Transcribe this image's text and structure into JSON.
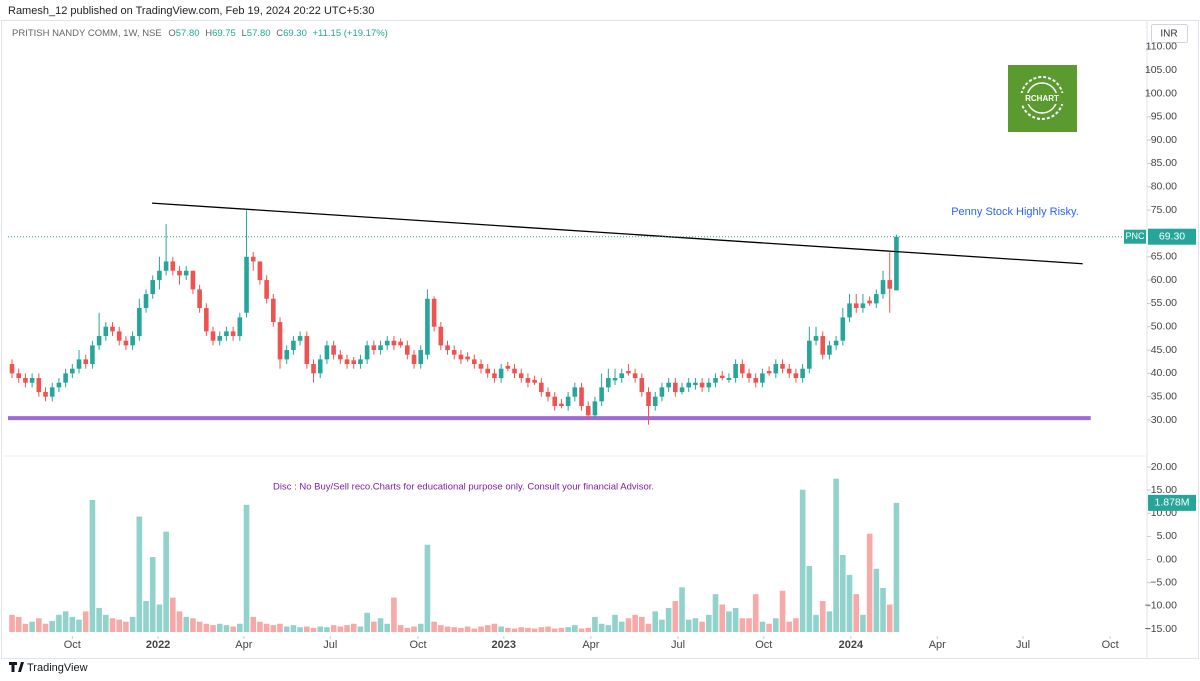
{
  "chart_data": {
    "type": "candlestick",
    "title": "Ramesh_12 published on TradingView.com, Feb 19, 2024 20:22 UTC+5:30",
    "legend": {
      "symbol": "PRITISH NANDY COMM, 1W, NSE",
      "labels": [
        "O",
        "H",
        "L",
        "C"
      ],
      "values": [
        "57.80",
        "69.75",
        "57.80",
        "69.30"
      ],
      "change": "+11.15 (+19.17%)"
    },
    "currency": "INR",
    "logo": "RCHART",
    "brand": "TradingView",
    "annotations": [
      "Penny Stock Highly Risky.",
      "Disc  : No Buy/Sell reco.Charts for educational purpose only.  Consult your financial Advisor."
    ],
    "price_tag": {
      "symbol": "PNC",
      "label": "69.30"
    },
    "volume_tag": {
      "label": "1.878M"
    },
    "up_color": "#26a69a",
    "down_color": "#ef5350",
    "volume_up_color": "#92d2cc",
    "volume_down_color": "#f7a9a7",
    "open": [
      42,
      40,
      39,
      38,
      39,
      36,
      35,
      37,
      38,
      40,
      41,
      43,
      42,
      46,
      48,
      50,
      49,
      47,
      46,
      48,
      54,
      57,
      60,
      62,
      64,
      62,
      61,
      62,
      58,
      54,
      49,
      47,
      48,
      49,
      48,
      53,
      65,
      64,
      60,
      56,
      51,
      43,
      45,
      47,
      48,
      42,
      40,
      43,
      46,
      44,
      43,
      42.8,
      42,
      43,
      46,
      45,
      46,
      47,
      46.8,
      46,
      44,
      42,
      44,
      56,
      50,
      46,
      45,
      44,
      43.6,
      43,
      42,
      41,
      40,
      39,
      41.6,
      41,
      40,
      39,
      38.6,
      38,
      36,
      35,
      33.5,
      33,
      35,
      37,
      33,
      31,
      34,
      37,
      38.5,
      39,
      40.5,
      40,
      39,
      36,
      33,
      35,
      37,
      38,
      36,
      37,
      37.5,
      38,
      37,
      38,
      39.5,
      38.6,
      39,
      42,
      40,
      39,
      38,
      40.5,
      40,
      42,
      41,
      40,
      39,
      41,
      47,
      48,
      44,
      46,
      47,
      52,
      55,
      54,
      55.6,
      55,
      57,
      60,
      57.8
    ],
    "high": [
      43,
      41,
      40,
      40,
      40,
      37,
      38,
      39,
      41,
      42,
      45,
      44,
      47,
      53,
      51,
      51,
      50,
      48,
      49,
      56,
      58,
      61,
      65,
      72,
      65,
      63,
      63,
      62,
      59,
      55,
      50,
      49,
      50,
      50,
      53,
      75,
      66,
      64,
      61,
      57,
      52,
      46,
      48,
      49,
      49,
      43,
      44,
      47,
      47,
      45,
      44,
      43.5,
      44,
      47,
      47,
      47,
      48,
      48,
      47.5,
      47,
      45,
      46,
      58,
      56.5,
      51,
      47,
      46,
      45,
      44.5,
      44,
      43,
      42,
      41,
      42,
      42.5,
      42,
      41,
      40,
      39.5,
      39,
      37,
      36,
      34.5,
      36,
      38,
      38,
      34,
      35,
      40,
      41,
      41,
      41,
      42,
      41,
      40,
      37,
      36,
      38,
      39,
      39,
      38,
      39,
      39,
      39,
      39,
      40,
      40.5,
      40,
      43,
      43,
      41,
      40,
      41,
      41.5,
      43,
      43,
      42,
      41,
      42,
      50,
      50,
      49,
      47,
      48,
      54,
      57,
      57,
      57,
      56.5,
      58,
      62,
      66,
      69.75
    ],
    "low": [
      39,
      38,
      37,
      37,
      35,
      34,
      34,
      36,
      37,
      39,
      40,
      41,
      41,
      45,
      47,
      48,
      46,
      45,
      45,
      47,
      53,
      56,
      58,
      61,
      61,
      59,
      60,
      57,
      53,
      48,
      46,
      46,
      47,
      47,
      47,
      52,
      62,
      59,
      55,
      50,
      41,
      42,
      44,
      46,
      41,
      38,
      39,
      42,
      43,
      42,
      41,
      41,
      41,
      42,
      44,
      44,
      45,
      45,
      45.5,
      43,
      41,
      41,
      43,
      49,
      45,
      44,
      43,
      42,
      42.5,
      41,
      40,
      39,
      38,
      38,
      40.5,
      39,
      38,
      37,
      37.5,
      35,
      34,
      32,
      32.5,
      32,
      34,
      32,
      30,
      30.5,
      33,
      36,
      37.5,
      38,
      39.5,
      38,
      35,
      29,
      32,
      34,
      36,
      35,
      35.5,
      36,
      36.5,
      36,
      36,
      37,
      38.5,
      38,
      38,
      39,
      38,
      37,
      37,
      39.5,
      39,
      40,
      39,
      38,
      38,
      40,
      46,
      43,
      43,
      45,
      46,
      51,
      53,
      53,
      54.5,
      54,
      56,
      53,
      57.8
    ],
    "close": [
      40,
      39,
      38,
      39,
      36,
      35,
      37,
      38,
      40,
      41,
      43,
      42,
      46,
      48,
      50,
      49,
      47,
      46,
      48,
      54,
      57,
      60,
      62,
      64,
      62,
      61,
      62,
      58,
      54,
      49,
      47,
      48,
      49,
      48,
      52,
      65,
      64,
      60,
      56,
      51,
      43,
      45,
      47,
      48,
      42,
      40,
      43,
      46,
      44,
      43,
      42,
      42,
      43,
      46,
      45,
      46,
      47,
      46,
      46,
      44,
      42,
      45,
      56,
      50,
      46,
      45,
      44,
      43,
      43,
      42,
      41,
      40,
      39,
      41,
      41,
      40,
      39,
      38,
      38,
      36,
      35,
      33,
      33,
      35,
      37,
      33,
      31,
      34,
      37,
      39,
      39,
      40,
      40,
      39,
      36,
      33,
      35,
      37,
      38,
      36,
      37,
      38,
      38,
      37,
      38,
      39,
      39,
      39,
      42,
      40,
      39,
      38,
      40,
      40,
      42,
      41,
      40,
      39,
      41,
      47,
      48,
      44,
      46,
      47,
      52,
      55,
      54,
      55,
      55,
      57,
      60,
      58.15,
      69.3
    ],
    "volume": [
      0.25,
      0.22,
      0.12,
      0.15,
      0.2,
      0.12,
      0.16,
      0.25,
      0.3,
      0.22,
      0.18,
      0.3,
      1.92,
      0.35,
      0.25,
      0.2,
      0.18,
      0.15,
      0.22,
      1.68,
      0.45,
      1.09,
      0.4,
      1.46,
      0.5,
      0.3,
      0.22,
      0.2,
      0.15,
      0.12,
      0.1,
      0.12,
      0.1,
      0.08,
      0.12,
      1.85,
      0.22,
      0.15,
      0.12,
      0.1,
      0.12,
      0.08,
      0.1,
      0.07,
      0.08,
      0.06,
      0.08,
      0.07,
      0.1,
      0.08,
      0.1,
      0.12,
      0.08,
      0.28,
      0.15,
      0.2,
      0.12,
      0.5,
      0.1,
      0.06,
      0.08,
      0.12,
      1.27,
      0.15,
      0.1,
      0.08,
      0.07,
      0.06,
      0.08,
      0.05,
      0.08,
      0.1,
      0.12,
      0.08,
      0.06,
      0.05,
      0.07,
      0.06,
      0.05,
      0.07,
      0.08,
      0.05,
      0.06,
      0.07,
      0.1,
      0.05,
      0.06,
      0.22,
      0.12,
      0.1,
      0.25,
      0.15,
      0.2,
      0.25,
      0.22,
      0.12,
      0.3,
      0.18,
      0.35,
      0.45,
      0.65,
      0.18,
      0.2,
      0.15,
      0.25,
      0.55,
      0.4,
      0.3,
      0.35,
      0.2,
      0.2,
      0.55,
      0.15,
      0.12,
      0.2,
      0.6,
      0.15,
      0.2,
      2.07,
      0.96,
      0.25,
      0.45,
      0.3,
      2.23,
      1.12,
      0.83,
      0.55,
      0.25,
      1.43,
      0.92,
      0.64,
      0.4,
      1.878
    ],
    "xlim": [
      -0.6,
      169.25
    ],
    "xticks": [
      {
        "value": 9,
        "label": "Oct"
      },
      {
        "value": 21.8,
        "label": "2022"
      },
      {
        "value": 34.6,
        "label": "Apr"
      },
      {
        "value": 47.5,
        "label": "Jul"
      },
      {
        "value": 60.6,
        "label": "Oct"
      },
      {
        "value": 73.4,
        "label": "2023"
      },
      {
        "value": 86.4,
        "label": "Apr"
      },
      {
        "value": 99.4,
        "label": "Jul"
      },
      {
        "value": 112.2,
        "label": "Oct"
      },
      {
        "value": 125.2,
        "label": "2024"
      },
      {
        "value": 138.1,
        "label": "Apr"
      },
      {
        "value": 150.9,
        "label": "Jul"
      },
      {
        "value": 163.9,
        "label": "Oct"
      }
    ],
    "ylim": [
      22.5,
      114.9
    ],
    "yticks": [
      {
        "value": 30,
        "label": "30.00"
      },
      {
        "value": 35,
        "label": "35.00"
      },
      {
        "value": 40,
        "label": "40.00"
      },
      {
        "value": 45,
        "label": "45.00"
      },
      {
        "value": 50,
        "label": "50.00"
      },
      {
        "value": 55,
        "label": "55.00"
      },
      {
        "value": 60,
        "label": "60.00"
      },
      {
        "value": 65,
        "label": "65.00"
      },
      {
        "value": 70,
        "label": "70.00"
      },
      {
        "value": 75,
        "label": "75.00"
      },
      {
        "value": 80,
        "label": "80.00"
      },
      {
        "value": 85,
        "label": "85.00"
      },
      {
        "value": 90,
        "label": "90.00"
      },
      {
        "value": 95,
        "label": "95.00"
      },
      {
        "value": 100,
        "label": "100.00"
      },
      {
        "value": 105,
        "label": "105.00"
      },
      {
        "value": 110,
        "label": "110.00"
      }
    ],
    "y2lim": [
      -15.65,
      20
    ],
    "y2ticks": [
      {
        "value": -15,
        "label": "−15.00"
      },
      {
        "value": -10,
        "label": "−10.00"
      },
      {
        "value": -5,
        "label": "−5.00"
      },
      {
        "value": 0,
        "label": "0.00"
      },
      {
        "value": 5,
        "label": "5.00"
      },
      {
        "value": 10,
        "label": "10.00"
      },
      {
        "value": 15,
        "label": "15.00"
      },
      {
        "value": 20,
        "label": "20.00"
      }
    ],
    "volume_lim": [
      0,
      2.4
    ],
    "trendline": {
      "x": [
        20.9,
        159.8
      ],
      "y": [
        76.5,
        63.5
      ],
      "color": "#000000"
    },
    "support_line": {
      "x": [
        -0.6,
        161
      ],
      "y": 30.4,
      "color": "#9c6bd3"
    },
    "grid": false
  }
}
